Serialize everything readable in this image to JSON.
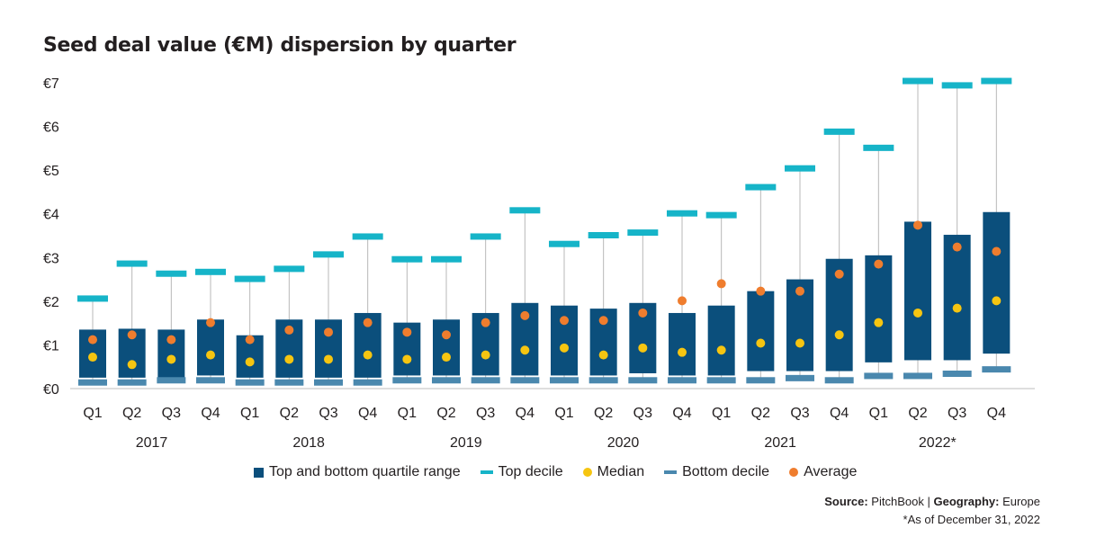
{
  "chart_data": {
    "type": "box",
    "title": "Seed deal value (€M) dispersion by quarter",
    "ylim": [
      0,
      7
    ],
    "yticks": [
      "€0",
      "€1",
      "€2",
      "€3",
      "€4",
      "€5",
      "€6",
      "€7"
    ],
    "categories": [
      "Q1",
      "Q2",
      "Q3",
      "Q4",
      "Q1",
      "Q2",
      "Q3",
      "Q4",
      "Q1",
      "Q2",
      "Q3",
      "Q4",
      "Q1",
      "Q2",
      "Q3",
      "Q4",
      "Q1",
      "Q2",
      "Q3",
      "Q4",
      "Q1",
      "Q2",
      "Q3",
      "Q4"
    ],
    "years": [
      "2017",
      "2018",
      "2019",
      "2020",
      "2021",
      "2022*"
    ],
    "series": [
      {
        "name": "Top and bottom quartile range",
        "color": "#0b4f7c",
        "low": [
          0.25,
          0.25,
          0.25,
          0.3,
          0.25,
          0.25,
          0.25,
          0.25,
          0.3,
          0.3,
          0.3,
          0.3,
          0.3,
          0.3,
          0.35,
          0.3,
          0.3,
          0.4,
          0.4,
          0.4,
          0.6,
          0.65,
          0.65,
          0.8
        ],
        "high": [
          1.35,
          1.37,
          1.35,
          1.58,
          1.22,
          1.58,
          1.58,
          1.73,
          1.51,
          1.58,
          1.73,
          1.96,
          1.9,
          1.83,
          1.96,
          1.73,
          1.9,
          2.23,
          2.5,
          2.97,
          3.05,
          3.82,
          3.52,
          4.04
        ]
      },
      {
        "name": "Top decile",
        "color": "#16b4c8",
        "values": [
          2.05,
          2.85,
          2.62,
          2.66,
          2.5,
          2.73,
          3.06,
          3.47,
          2.95,
          2.95,
          3.47,
          4.07,
          3.3,
          3.5,
          3.56,
          4.0,
          3.96,
          4.6,
          5.03,
          5.87,
          5.5,
          7.03,
          6.93,
          7.03
        ]
      },
      {
        "name": "Median",
        "color": "#f6c511",
        "values": [
          0.72,
          0.55,
          0.67,
          0.77,
          0.61,
          0.67,
          0.67,
          0.77,
          0.67,
          0.72,
          0.77,
          0.88,
          0.93,
          0.77,
          0.93,
          0.83,
          0.88,
          1.04,
          1.04,
          1.23,
          1.51,
          1.73,
          1.84,
          2.01
        ]
      },
      {
        "name": "Bottom decile",
        "color": "#4a88ae",
        "values": [
          0.15,
          0.15,
          0.2,
          0.2,
          0.15,
          0.15,
          0.15,
          0.15,
          0.2,
          0.2,
          0.2,
          0.2,
          0.2,
          0.2,
          0.2,
          0.2,
          0.2,
          0.2,
          0.25,
          0.2,
          0.3,
          0.3,
          0.35,
          0.45
        ]
      },
      {
        "name": "Average",
        "color": "#ef7d2e",
        "values": [
          1.12,
          1.23,
          1.12,
          1.51,
          1.12,
          1.34,
          1.29,
          1.51,
          1.29,
          1.23,
          1.51,
          1.67,
          1.56,
          1.56,
          1.73,
          2.01,
          2.4,
          2.23,
          2.23,
          2.62,
          2.85,
          3.74,
          3.24,
          3.14
        ]
      }
    ]
  },
  "footer": {
    "source_label": "Source:",
    "source_value": "PitchBook",
    "separator": "|",
    "geo_label": "Geography:",
    "geo_value": "Europe",
    "note": "*As of December 31, 2022"
  }
}
